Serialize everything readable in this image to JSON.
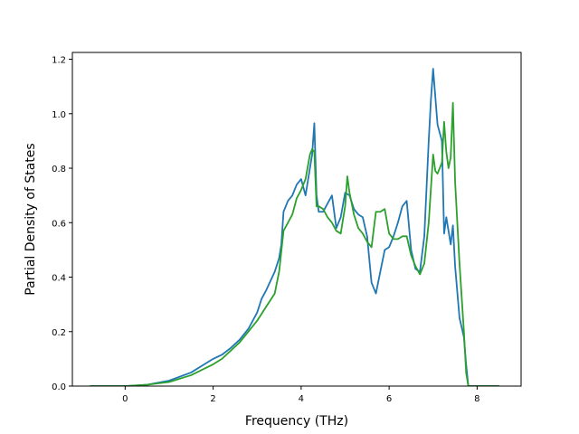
{
  "chart_data": {
    "type": "line",
    "title": "",
    "xlabel": "Frequency (THz)",
    "ylabel": "Partial Density of States",
    "xlim": [
      -1.2,
      9.0
    ],
    "ylim": [
      0.0,
      1.225
    ],
    "xticks": [
      0,
      2,
      4,
      6,
      8
    ],
    "yticks": [
      0.0,
      0.2,
      0.4,
      0.6,
      0.8,
      1.0,
      1.2
    ],
    "xtick_labels": [
      "0",
      "2",
      "4",
      "6",
      "8"
    ],
    "ytick_labels": [
      "0.0",
      "0.2",
      "0.4",
      "0.6",
      "0.8",
      "1.0",
      "1.2"
    ],
    "grid": false,
    "legend": "none",
    "series": [
      {
        "color": "#1f77b4",
        "x": [
          -0.8,
          0.0,
          0.5,
          1.0,
          1.5,
          1.8,
          2.0,
          2.2,
          2.4,
          2.6,
          2.8,
          3.0,
          3.1,
          3.2,
          3.4,
          3.5,
          3.55,
          3.6,
          3.7,
          3.8,
          3.9,
          4.0,
          4.1,
          4.2,
          4.25,
          4.3,
          4.35,
          4.4,
          4.5,
          4.6,
          4.7,
          4.8,
          4.9,
          5.0,
          5.1,
          5.2,
          5.3,
          5.4,
          5.5,
          5.6,
          5.7,
          5.8,
          5.9,
          6.0,
          6.1,
          6.2,
          6.3,
          6.4,
          6.5,
          6.6,
          6.7,
          6.8,
          6.9,
          6.95,
          7.0,
          7.1,
          7.2,
          7.25,
          7.3,
          7.4,
          7.45,
          7.5,
          7.6,
          7.7,
          7.75,
          7.8,
          8.0,
          8.5
        ],
        "y": [
          0.0,
          0.0,
          0.005,
          0.02,
          0.05,
          0.08,
          0.1,
          0.115,
          0.14,
          0.17,
          0.21,
          0.27,
          0.32,
          0.35,
          0.42,
          0.47,
          0.52,
          0.64,
          0.68,
          0.7,
          0.74,
          0.76,
          0.7,
          0.8,
          0.85,
          0.965,
          0.7,
          0.64,
          0.64,
          0.67,
          0.7,
          0.58,
          0.62,
          0.71,
          0.7,
          0.65,
          0.63,
          0.62,
          0.55,
          0.38,
          0.34,
          0.42,
          0.5,
          0.51,
          0.55,
          0.6,
          0.66,
          0.68,
          0.5,
          0.43,
          0.42,
          0.55,
          0.9,
          1.05,
          1.165,
          0.96,
          0.9,
          0.56,
          0.62,
          0.52,
          0.59,
          0.44,
          0.25,
          0.18,
          0.08,
          0.0,
          0.0,
          0.0
        ]
      },
      {
        "color": "#2ca02c",
        "x": [
          -0.8,
          0.0,
          0.5,
          1.0,
          1.5,
          2.0,
          2.2,
          2.4,
          2.6,
          2.8,
          3.0,
          3.2,
          3.4,
          3.5,
          3.6,
          3.7,
          3.8,
          3.9,
          4.0,
          4.1,
          4.2,
          4.25,
          4.3,
          4.35,
          4.4,
          4.5,
          4.6,
          4.7,
          4.8,
          4.9,
          5.0,
          5.05,
          5.1,
          5.2,
          5.3,
          5.4,
          5.5,
          5.6,
          5.7,
          5.8,
          5.9,
          6.0,
          6.1,
          6.2,
          6.3,
          6.4,
          6.5,
          6.6,
          6.7,
          6.8,
          6.9,
          7.0,
          7.05,
          7.1,
          7.2,
          7.25,
          7.3,
          7.35,
          7.4,
          7.45,
          7.5,
          7.6,
          7.7,
          7.75,
          7.8,
          8.0,
          8.5
        ],
        "y": [
          0.0,
          0.0,
          0.005,
          0.015,
          0.04,
          0.08,
          0.1,
          0.13,
          0.16,
          0.2,
          0.24,
          0.29,
          0.34,
          0.42,
          0.57,
          0.6,
          0.63,
          0.69,
          0.72,
          0.76,
          0.85,
          0.87,
          0.86,
          0.66,
          0.66,
          0.65,
          0.62,
          0.6,
          0.57,
          0.56,
          0.66,
          0.77,
          0.71,
          0.63,
          0.58,
          0.56,
          0.53,
          0.51,
          0.64,
          0.64,
          0.65,
          0.56,
          0.54,
          0.54,
          0.55,
          0.55,
          0.48,
          0.44,
          0.41,
          0.45,
          0.6,
          0.85,
          0.79,
          0.78,
          0.82,
          0.97,
          0.86,
          0.8,
          0.84,
          1.04,
          0.75,
          0.45,
          0.2,
          0.05,
          0.0,
          0.0,
          0.0
        ]
      }
    ]
  }
}
